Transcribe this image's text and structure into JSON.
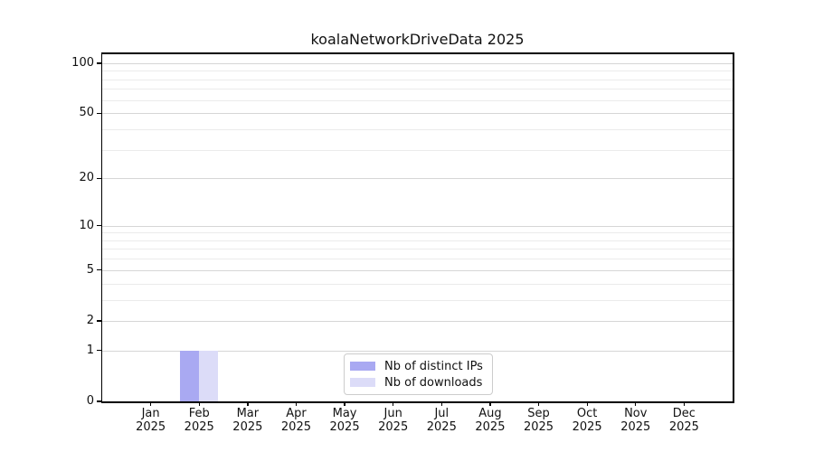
{
  "chart_data": {
    "type": "bar",
    "title": "koalaNetworkDriveData 2025",
    "categories": [
      "Jan",
      "Feb",
      "Mar",
      "Apr",
      "May",
      "Jun",
      "Jul",
      "Aug",
      "Sep",
      "Oct",
      "Nov",
      "Dec"
    ],
    "x_tick_year": "2025",
    "series": [
      {
        "name": "Nb of distinct IPs",
        "color": "#a9a9f2",
        "values": [
          0,
          1,
          0,
          0,
          0,
          0,
          0,
          0,
          0,
          0,
          0,
          0
        ]
      },
      {
        "name": "Nb of downloads",
        "color": "#dcdcf8",
        "values": [
          0,
          1,
          0,
          0,
          0,
          0,
          0,
          0,
          0,
          0,
          0,
          0
        ]
      }
    ],
    "yscale": "log1p",
    "ylim": [
      0,
      113
    ],
    "y_major_ticks": [
      0,
      1,
      2,
      5,
      10,
      20,
      50,
      100
    ],
    "y_minor_ticks": [
      3,
      4,
      6,
      7,
      8,
      9,
      30,
      40,
      60,
      70,
      80,
      90
    ],
    "grid": "horizontal",
    "legend_position": "lower center"
  },
  "colors": {
    "major_grid": "#d6d6d6",
    "minor_grid": "#ebebeb",
    "spine": "#000000",
    "text": "#111111"
  }
}
